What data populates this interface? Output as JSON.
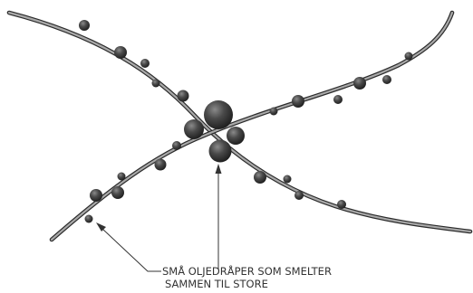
{
  "caption": {
    "line1": "SMÅ OLJEDRÅPER SOM SMELTER",
    "line2": "SAMMEN TIL STORE"
  }
}
